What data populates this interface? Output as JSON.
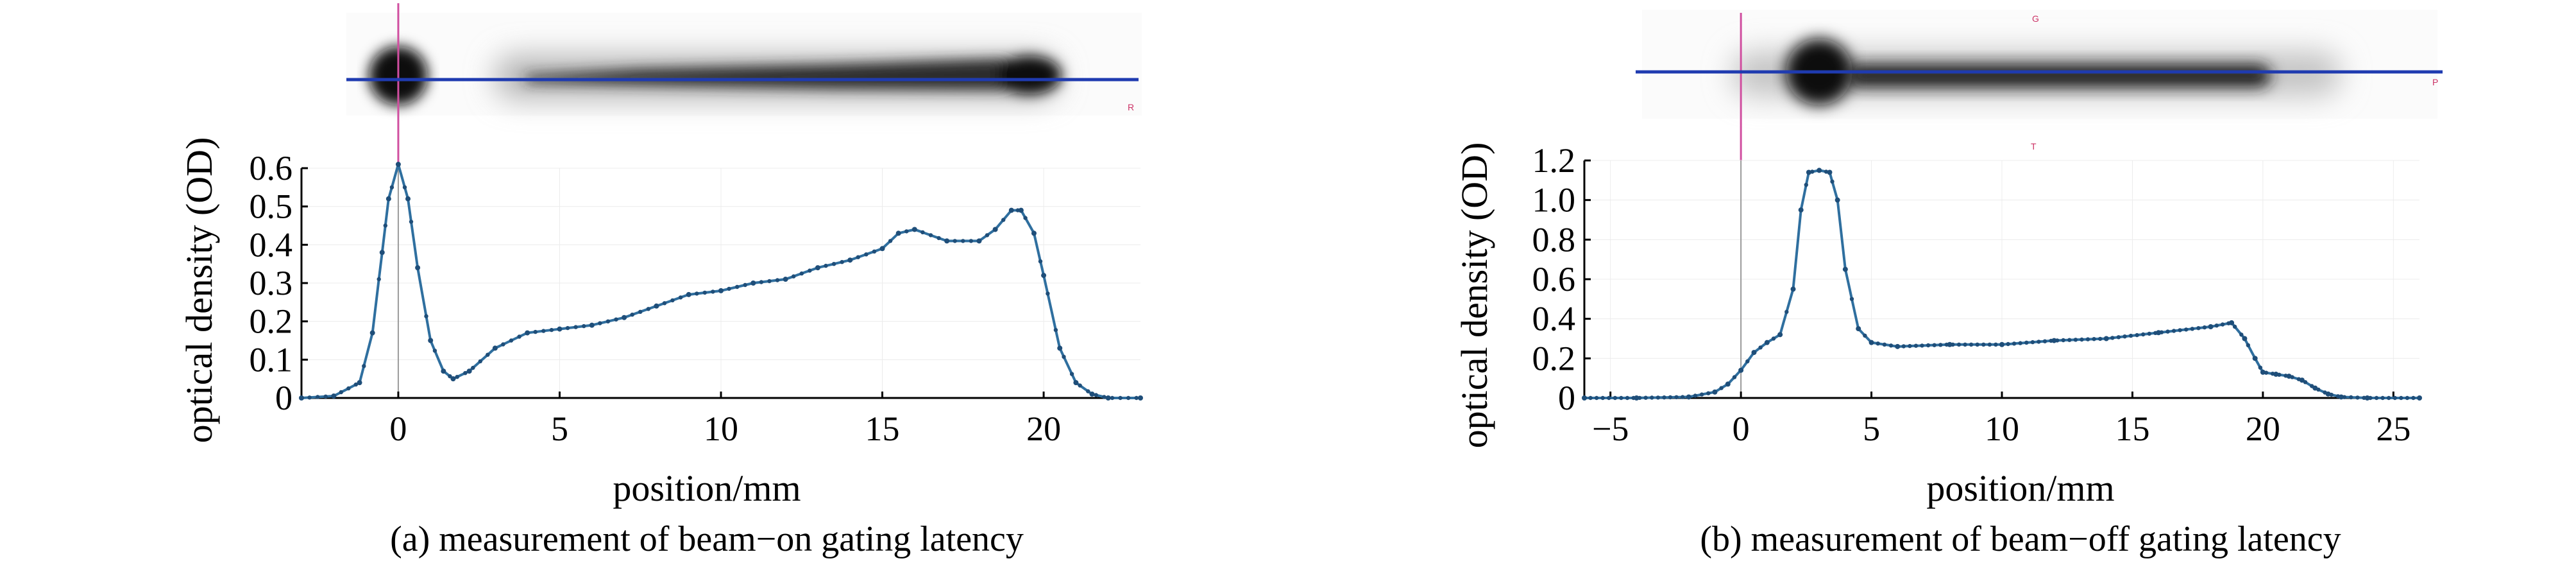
{
  "colors": {
    "series": "#2f6f9f",
    "marker": "#1f4e79",
    "scan_line": "#1f3bb0",
    "ref_line": "#d04fa0",
    "film_dark": "#0b0b0b",
    "axis": "#000000"
  },
  "chart_data": [
    {
      "type": "line",
      "caption": "(a) measurement of beam−on gating latency",
      "xlabel": "position/mm",
      "ylabel": "optical density (OD)",
      "xlim": [
        -3.0,
        23.0
      ],
      "ylim": [
        0,
        0.6
      ],
      "xticks": [
        0,
        5,
        10,
        15,
        20
      ],
      "yticks": [
        0,
        0.1,
        0.2,
        0.3,
        0.4,
        0.5,
        0.6
      ],
      "ytick_labels": [
        "0",
        "0.1",
        "0.2",
        "0.3",
        "0.4",
        "0.5",
        "0.6"
      ],
      "vline_x": 0,
      "film_letters": [
        "R"
      ],
      "series": [
        {
          "x": [
            -3.0,
            -2.0,
            -1.2,
            -0.8,
            -0.5,
            -0.3,
            0.0,
            0.3,
            0.6,
            1.0,
            1.4,
            1.7,
            2.2,
            3.0,
            4.0,
            5.0,
            6.0,
            7.0,
            8.0,
            9.0,
            10.0,
            11.0,
            12.0,
            13.0,
            14.0,
            15.0,
            15.5,
            16.0,
            17.0,
            18.0,
            18.5,
            19.0,
            19.3,
            19.7,
            20.0,
            20.5,
            21.0,
            21.5,
            22.0,
            23.0
          ],
          "y": [
            0.0,
            0.005,
            0.04,
            0.17,
            0.38,
            0.52,
            0.61,
            0.52,
            0.34,
            0.15,
            0.07,
            0.05,
            0.07,
            0.13,
            0.17,
            0.18,
            0.19,
            0.21,
            0.24,
            0.27,
            0.28,
            0.3,
            0.31,
            0.34,
            0.36,
            0.39,
            0.43,
            0.44,
            0.41,
            0.41,
            0.44,
            0.49,
            0.49,
            0.43,
            0.32,
            0.13,
            0.04,
            0.01,
            0.0,
            0.0
          ]
        }
      ]
    },
    {
      "type": "line",
      "caption": "(b) measurement of beam−off gating latency",
      "xlabel": "position/mm",
      "ylabel": "optical density (OD)",
      "xlim": [
        -6.0,
        26.0
      ],
      "ylim": [
        0,
        1.2
      ],
      "xticks": [
        -5,
        0,
        5,
        10,
        15,
        20,
        25
      ],
      "xtick_labels": [
        "−5",
        "0",
        "5",
        "10",
        "15",
        "20",
        "25"
      ],
      "yticks": [
        0,
        0.2,
        0.4,
        0.6,
        0.8,
        1.0,
        1.2
      ],
      "ytick_labels": [
        "0",
        "0.2",
        "0.4",
        "0.6",
        "0.8",
        "1.0",
        "1.2"
      ],
      "vline_x": 0,
      "film_letters": [
        "G",
        "P",
        "T"
      ],
      "series": [
        {
          "x": [
            -6.0,
            -4.0,
            -2.0,
            -1.0,
            -0.5,
            0.0,
            0.5,
            1.0,
            1.5,
            2.0,
            2.3,
            2.6,
            3.0,
            3.4,
            3.7,
            4.0,
            4.5,
            5.0,
            6.0,
            8.0,
            10.0,
            12.0,
            14.0,
            16.0,
            18.0,
            18.8,
            19.3,
            19.7,
            20.0,
            20.5,
            21.0,
            21.5,
            22.0,
            22.5,
            23.0,
            24.0,
            26.0
          ],
          "y": [
            0.0,
            0.0,
            0.005,
            0.03,
            0.07,
            0.14,
            0.23,
            0.28,
            0.32,
            0.55,
            0.95,
            1.14,
            1.15,
            1.14,
            1.0,
            0.65,
            0.35,
            0.28,
            0.26,
            0.27,
            0.27,
            0.29,
            0.3,
            0.33,
            0.36,
            0.38,
            0.3,
            0.2,
            0.13,
            0.12,
            0.11,
            0.09,
            0.05,
            0.02,
            0.005,
            0.0,
            0.0
          ]
        }
      ]
    }
  ]
}
